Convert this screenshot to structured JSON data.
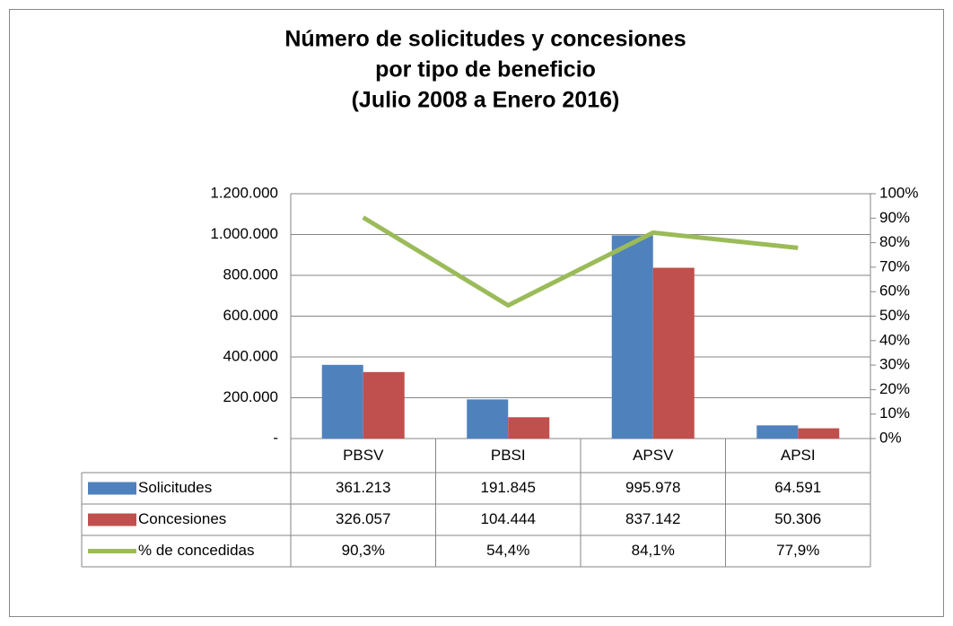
{
  "chart_data": {
    "type": "bar",
    "title_lines": [
      "Número de solicitudes y concesiones",
      "por tipo de beneficio",
      "(Julio 2008 a Enero 2016)"
    ],
    "categories": [
      "PBSV",
      "PBSI",
      "APSV",
      "APSI"
    ],
    "series": [
      {
        "name": "Solicitudes",
        "type": "bar",
        "color": "#4f81bd",
        "values": [
          361213,
          191845,
          995978,
          64591
        ],
        "value_labels": [
          "361.213",
          "191.845",
          "995.978",
          "64.591"
        ]
      },
      {
        "name": "Concesiones",
        "type": "bar",
        "color": "#c0504d",
        "values": [
          326057,
          104444,
          837142,
          50306
        ],
        "value_labels": [
          "326.057",
          "104.444",
          "837.142",
          "50.306"
        ]
      },
      {
        "name": "% de concedidas",
        "type": "line",
        "axis": "y2",
        "color": "#9bbb59",
        "values": [
          90.3,
          54.4,
          84.1,
          77.9
        ],
        "value_labels": [
          "90,3%",
          "54,4%",
          "84,1%",
          "77,9%"
        ]
      }
    ],
    "ylim": [
      0,
      1200000
    ],
    "yticks": [
      {
        "value": 0,
        "label": "-"
      },
      {
        "value": 200000,
        "label": "200.000"
      },
      {
        "value": 400000,
        "label": "400.000"
      },
      {
        "value": 600000,
        "label": "600.000"
      },
      {
        "value": 800000,
        "label": "800.000"
      },
      {
        "value": 1000000,
        "label": "1.000.000"
      },
      {
        "value": 1200000,
        "label": "1.200.000"
      }
    ],
    "y2lim": [
      0,
      100
    ],
    "y2ticks": [
      {
        "value": 0,
        "label": "0%"
      },
      {
        "value": 10,
        "label": "10%"
      },
      {
        "value": 20,
        "label": "20%"
      },
      {
        "value": 30,
        "label": "30%"
      },
      {
        "value": 40,
        "label": "40%"
      },
      {
        "value": 50,
        "label": "50%"
      },
      {
        "value": 60,
        "label": "60%"
      },
      {
        "value": 70,
        "label": "70%"
      },
      {
        "value": 80,
        "label": "80%"
      },
      {
        "value": 90,
        "label": "90%"
      },
      {
        "value": 100,
        "label": "100%"
      }
    ],
    "grid": true,
    "data_table": true
  }
}
